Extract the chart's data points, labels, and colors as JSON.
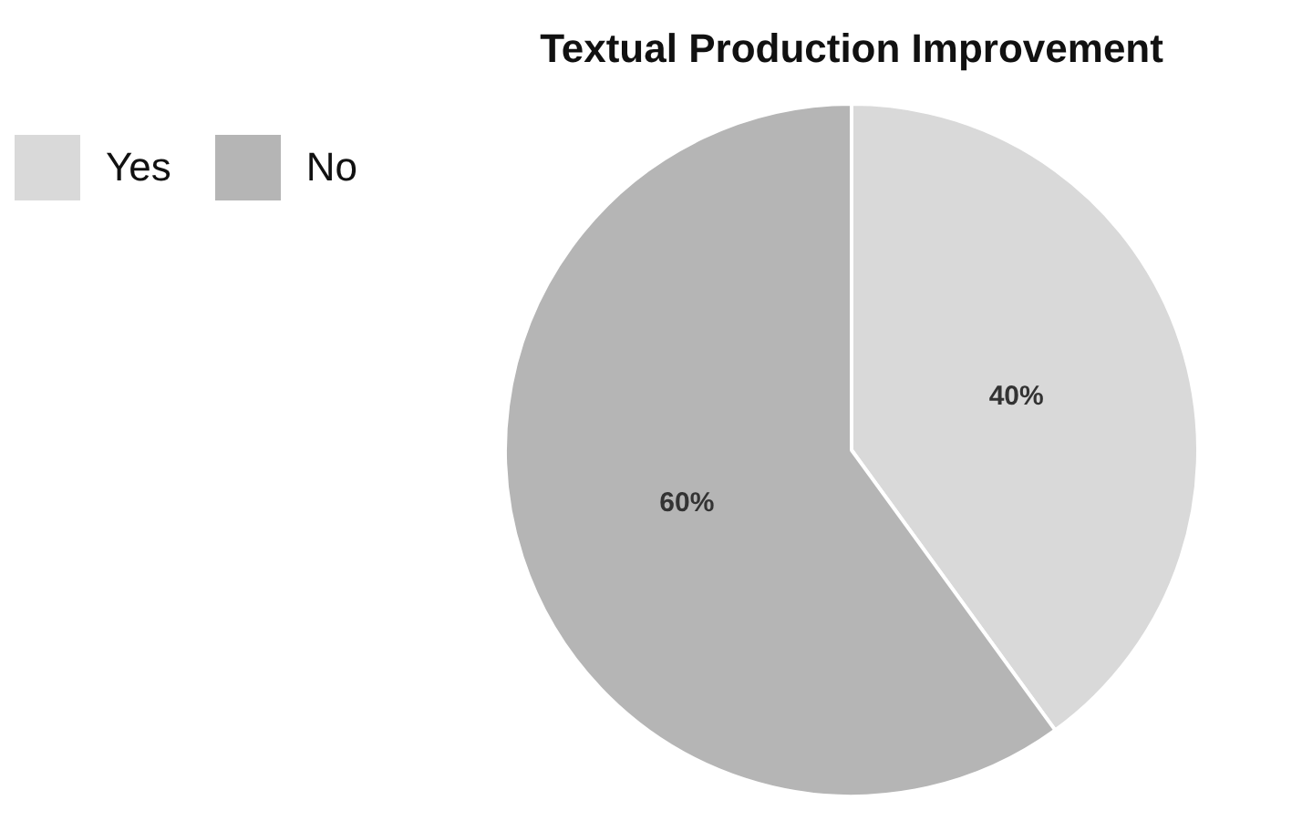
{
  "chart_data": {
    "type": "pie",
    "title": "Textual Production Improvement",
    "categories": [
      "Yes",
      "No"
    ],
    "values": [
      40,
      60
    ],
    "colors": [
      "#d9d9d9",
      "#b5b5b5"
    ],
    "value_labels": [
      "40%",
      "60%"
    ],
    "legend": "top left"
  }
}
